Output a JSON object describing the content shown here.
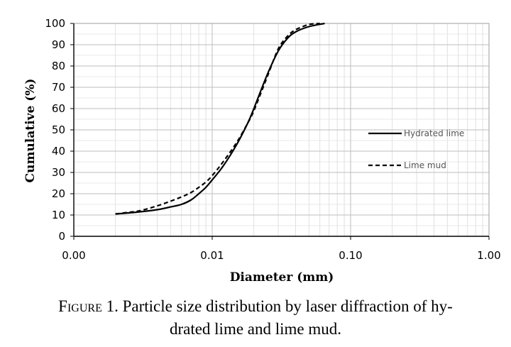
{
  "chart_data": {
    "type": "line",
    "title": "",
    "xlabel": "Diameter (mm)",
    "ylabel": "Cumulative (%)",
    "x_scale": "log",
    "xlim": [
      0.001,
      1.0
    ],
    "ylim": [
      0,
      100
    ],
    "x_ticks": [
      "0.00",
      "0.01",
      "0.10",
      "1.00"
    ],
    "y_ticks": [
      "0",
      "10",
      "20",
      "30",
      "40",
      "50",
      "60",
      "70",
      "80",
      "90",
      "100"
    ],
    "grid": true,
    "legend_position": "right",
    "series": [
      {
        "name": "Hydrated lime",
        "style": "solid",
        "color": "#000000",
        "x": [
          0.002,
          0.0025,
          0.003,
          0.004,
          0.005,
          0.006,
          0.007,
          0.008,
          0.009,
          0.01,
          0.012,
          0.015,
          0.018,
          0.02,
          0.025,
          0.03,
          0.035,
          0.04,
          0.05,
          0.065
        ],
        "y": [
          10.5,
          11,
          11.5,
          12.5,
          13.8,
          15,
          17,
          20,
          23,
          26.5,
          33,
          43,
          53,
          60,
          76,
          87,
          93,
          96,
          98.5,
          100
        ]
      },
      {
        "name": "Lime mud",
        "style": "dashed",
        "color": "#000000",
        "x": [
          0.002,
          0.0025,
          0.003,
          0.004,
          0.005,
          0.006,
          0.007,
          0.008,
          0.009,
          0.01,
          0.012,
          0.015,
          0.018,
          0.02,
          0.025,
          0.03,
          0.035,
          0.04,
          0.05,
          0.06
        ],
        "y": [
          10.5,
          11.3,
          12,
          14.3,
          16.5,
          18.5,
          20.5,
          23,
          25.5,
          28.5,
          35,
          44,
          53,
          59,
          75,
          88,
          94,
          97,
          99.5,
          100
        ]
      }
    ]
  },
  "caption": {
    "label": "Figure 1.",
    "text_line1": "Particle size distribution by laser diffraction of hy-",
    "text_line2": "drated lime and lime mud."
  }
}
